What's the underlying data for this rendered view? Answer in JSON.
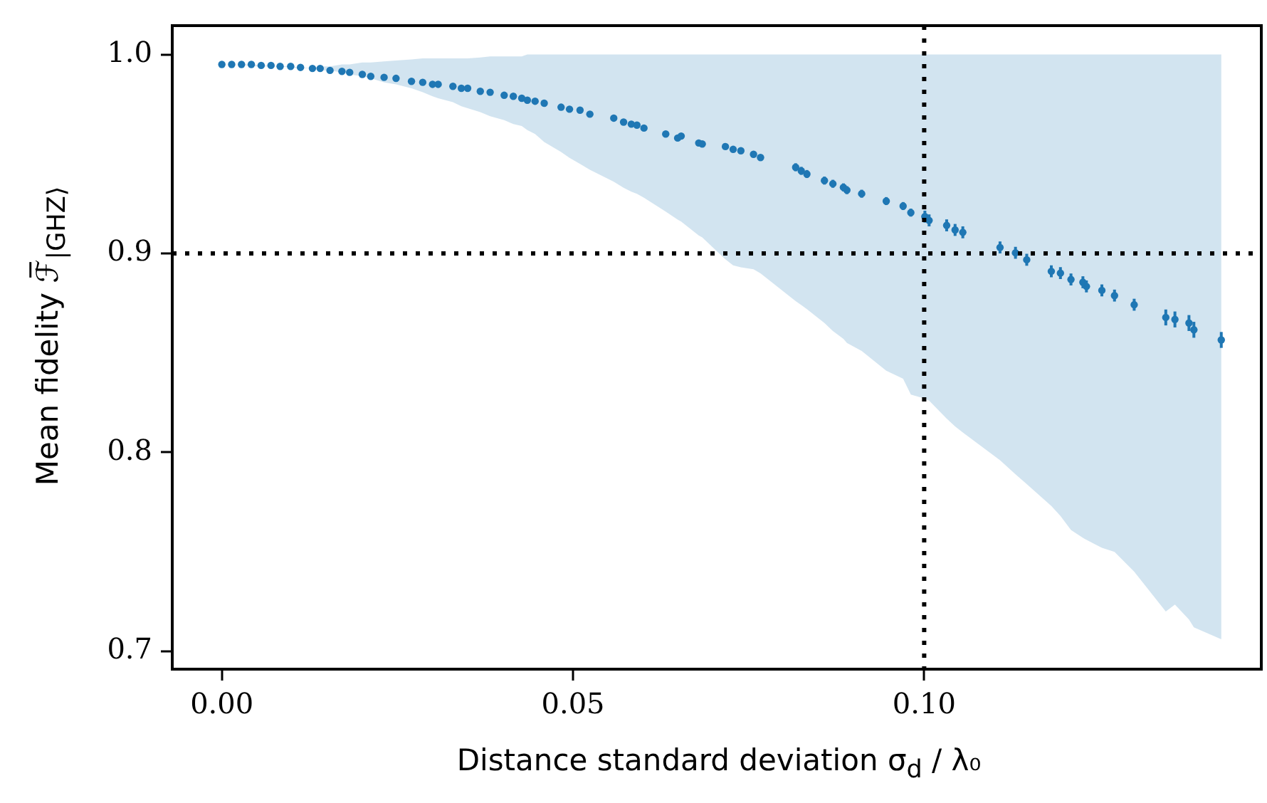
{
  "chart_data": {
    "type": "scatter",
    "xlabel": "Distance standard deviation σ$_{d}$ / λ₀",
    "ylabel": "Mean fidelity ℱ̅$_{|GHZ⟩}$",
    "xlim": [
      -0.00706,
      0.148
    ],
    "ylim": [
      0.691,
      1.0145
    ],
    "xticks": [
      {
        "value": 0,
        "label": "0.00"
      },
      {
        "value": 0.05,
        "label": "0.05"
      },
      {
        "value": 0.1,
        "label": "0.10"
      }
    ],
    "yticks": [
      {
        "value": 1,
        "label": "1.0"
      },
      0.9,
      0.8,
      0.7
    ],
    "grid": false,
    "ref_lines": [
      {
        "axis": "x",
        "value": 0.1,
        "color": "#000000",
        "line_style": "dotted"
      },
      {
        "axis": "y",
        "value": 0.9,
        "color": "#000000",
        "line_style": "dotted"
      }
    ],
    "series": [
      {
        "color": "#1f77b4",
        "marker": "circle",
        "x": [
          0,
          0.0014,
          0.0028,
          0.0042,
          0.0056,
          0.007,
          0.0083,
          0.0098,
          0.0112,
          0.0129,
          0.014,
          0.0154,
          0.0171,
          0.0182,
          0.02,
          0.0212,
          0.0231,
          0.0248,
          0.027,
          0.0286,
          0.03,
          0.0308,
          0.0329,
          0.0341,
          0.035,
          0.0368,
          0.0382,
          0.0402,
          0.0415,
          0.0427,
          0.0435,
          0.0446,
          0.0459,
          0.0483,
          0.0495,
          0.051,
          0.0524,
          0.0558,
          0.0572,
          0.0583,
          0.0591,
          0.0601,
          0.0632,
          0.0649,
          0.0654,
          0.0679,
          0.0684,
          0.0717,
          0.0728,
          0.0739,
          0.0757,
          0.0767,
          0.0817,
          0.0825,
          0.0833,
          0.0858,
          0.087,
          0.0885,
          0.089,
          0.0911,
          0.0946,
          0.097,
          0.0981,
          0.1001,
          0.1007,
          0.1032,
          0.1044,
          0.1055,
          0.1108,
          0.113,
          0.1146,
          0.1181,
          0.1194,
          0.1209,
          0.1226,
          0.1231,
          0.1253,
          0.1271,
          0.1299,
          0.1344,
          0.1357,
          0.1377,
          0.1384,
          0.1423
        ],
        "values": [
          0.995,
          0.995,
          0.995,
          0.995,
          0.9945,
          0.9945,
          0.994,
          0.994,
          0.9935,
          0.993,
          0.993,
          0.992,
          0.9915,
          0.991,
          0.99,
          0.989,
          0.9885,
          0.988,
          0.9865,
          0.986,
          0.985,
          0.985,
          0.984,
          0.983,
          0.983,
          0.9815,
          0.981,
          0.9795,
          0.979,
          0.978,
          0.977,
          0.9765,
          0.9755,
          0.9735,
          0.9725,
          0.972,
          0.97,
          0.968,
          0.966,
          0.965,
          0.9645,
          0.963,
          0.96,
          0.958,
          0.959,
          0.9555,
          0.955,
          0.9537,
          0.9523,
          0.9516,
          0.9498,
          0.9482,
          0.9433,
          0.9415,
          0.9399,
          0.9366,
          0.935,
          0.9332,
          0.9318,
          0.93,
          0.9263,
          0.9238,
          0.9205,
          0.9185,
          0.9166,
          0.9141,
          0.9118,
          0.9106,
          0.903,
          0.9003,
          0.8968,
          0.891,
          0.8901,
          0.8869,
          0.8855,
          0.8834,
          0.8814,
          0.8788,
          0.8742,
          0.8678,
          0.8668,
          0.865,
          0.8616,
          0.8565
        ],
        "errors": [
          null,
          null,
          null,
          null,
          null,
          null,
          null,
          null,
          null,
          null,
          null,
          null,
          null,
          null,
          null,
          null,
          null,
          null,
          null,
          null,
          null,
          null,
          null,
          null,
          null,
          null,
          null,
          null,
          null,
          null,
          null,
          null,
          null,
          null,
          null,
          null,
          null,
          null,
          null,
          null,
          null,
          null,
          null,
          null,
          null,
          null,
          null,
          null,
          null,
          null,
          null,
          null,
          0.002,
          0.002,
          0.002,
          0.002,
          0.002,
          0.002,
          0.002,
          0.002,
          0.002,
          0.002,
          0.002,
          0.003,
          0.003,
          0.003,
          0.003,
          0.003,
          0.003,
          0.003,
          0.003,
          0.003,
          0.003,
          0.003,
          0.003,
          0.003,
          0.003,
          0.003,
          0.003,
          0.004,
          0.004,
          0.004,
          0.004,
          0.004
        ],
        "upper": [
          0.995,
          0.995,
          0.995,
          0.995,
          0.9945,
          0.9945,
          0.994,
          0.994,
          0.9935,
          0.993,
          0.994,
          0.994,
          0.995,
          0.995,
          0.996,
          0.996,
          0.9965,
          0.997,
          0.9975,
          0.998,
          0.998,
          0.998,
          0.998,
          0.998,
          0.998,
          0.9985,
          0.999,
          0.999,
          0.999,
          0.999,
          1,
          1,
          1,
          1,
          1,
          1,
          1,
          1,
          1,
          1,
          1,
          1,
          1,
          1,
          1,
          1,
          1,
          1,
          1,
          1,
          1,
          1,
          1,
          1,
          1,
          1,
          1,
          1,
          1,
          1,
          1,
          1,
          1,
          1,
          1,
          1,
          1,
          1,
          1,
          1,
          1,
          1,
          1,
          1,
          1,
          1,
          1,
          1,
          1,
          1,
          1,
          1,
          1,
          1
        ],
        "lower": [
          0.995,
          0.995,
          0.995,
          0.994,
          0.994,
          0.994,
          0.994,
          0.9935,
          0.993,
          0.993,
          0.992,
          0.992,
          0.991,
          0.99,
          0.989,
          0.988,
          0.986,
          0.985,
          0.983,
          0.981,
          0.979,
          0.978,
          0.976,
          0.974,
          0.973,
          0.971,
          0.969,
          0.967,
          0.965,
          0.964,
          0.962,
          0.96,
          0.956,
          0.951,
          0.948,
          0.945,
          0.942,
          0.936,
          0.933,
          0.931,
          0.93,
          0.928,
          0.921,
          0.917,
          0.916,
          0.909,
          0.908,
          0.897,
          0.894,
          0.893,
          0.892,
          0.89,
          0.876,
          0.874,
          0.872,
          0.865,
          0.861,
          0.857,
          0.855,
          0.851,
          0.841,
          0.837,
          0.829,
          0.827,
          0.826,
          0.817,
          0.813,
          0.81,
          0.796,
          0.789,
          0.784,
          0.773,
          0.768,
          0.761,
          0.757,
          0.756,
          0.752,
          0.75,
          0.74,
          0.72,
          0.7235,
          0.716,
          0.712,
          0.706
        ]
      }
    ]
  }
}
